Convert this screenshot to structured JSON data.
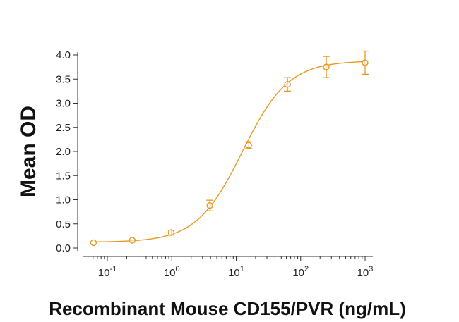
{
  "chart_data": {
    "type": "scatter",
    "xlabel": "Recombinant Mouse CD155/PVR (ng/mL)",
    "ylabel": "Mean OD",
    "x_scale": "log",
    "xlim": [
      0.05,
      1000
    ],
    "ylim": [
      0,
      4.0
    ],
    "y_ticks": [
      "0.0",
      "0.5",
      "1.0",
      "1.5",
      "2.0",
      "2.5",
      "3.0",
      "3.5",
      "4.0"
    ],
    "x_ticks": [
      {
        "base": "10",
        "exp": "-1",
        "value": 0.1
      },
      {
        "base": "10",
        "exp": "0",
        "value": 1
      },
      {
        "base": "10",
        "exp": "1",
        "value": 10
      },
      {
        "base": "10",
        "exp": "2",
        "value": 100
      },
      {
        "base": "10",
        "exp": "3",
        "value": 1000
      }
    ],
    "color": "#E8971E",
    "points": [
      {
        "x": 0.061,
        "y": 0.11,
        "err": 0.02
      },
      {
        "x": 0.244,
        "y": 0.16,
        "err": 0.02
      },
      {
        "x": 0.98,
        "y": 0.32,
        "err": 0.05
      },
      {
        "x": 3.9,
        "y": 0.88,
        "err": 0.11
      },
      {
        "x": 15.6,
        "y": 2.13,
        "err": 0.07
      },
      {
        "x": 62.5,
        "y": 3.39,
        "err": 0.14
      },
      {
        "x": 250,
        "y": 3.75,
        "err": 0.22
      },
      {
        "x": 1000,
        "y": 3.84,
        "err": 0.24
      }
    ],
    "fit": {
      "bottom": 0.12,
      "top": 3.88,
      "ec50": 12.5,
      "hill": 1.22
    },
    "grid": false,
    "legend": "none"
  }
}
